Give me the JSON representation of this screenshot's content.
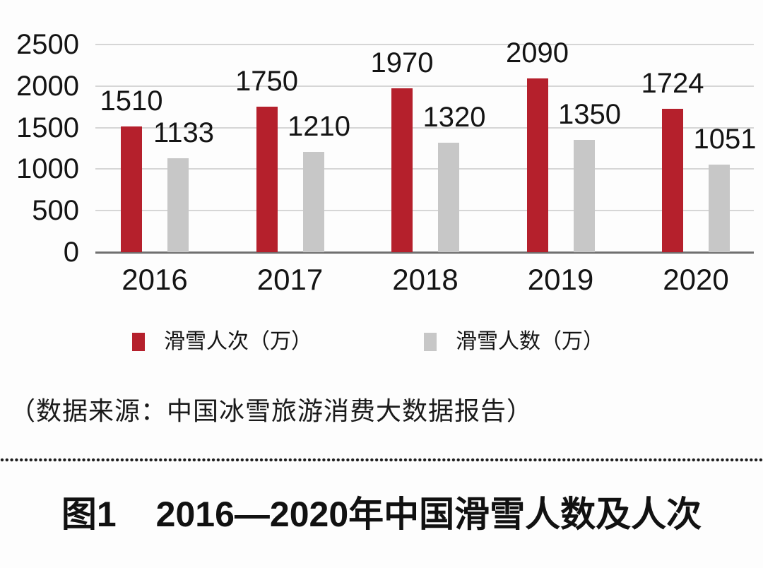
{
  "chart_data": {
    "type": "bar",
    "categories": [
      "2016",
      "2017",
      "2018",
      "2019",
      "2020"
    ],
    "series": [
      {
        "name": "滑雪人次（万）",
        "color": "#B5202C",
        "values": [
          1510,
          1750,
          1970,
          2090,
          1724
        ]
      },
      {
        "name": "滑雪人数（万）",
        "color": "#C7C7C7",
        "values": [
          1133,
          1210,
          1320,
          1350,
          1051
        ]
      }
    ],
    "title": "",
    "xlabel": "",
    "ylabel": "",
    "ylim": [
      0,
      2500
    ],
    "yticks": [
      0,
      500,
      1000,
      1500,
      2000,
      2500
    ],
    "grid": true,
    "legend_position": "bottom",
    "bar_value_labels": true
  },
  "colors": {
    "bar_red": "#B5202C",
    "bar_gray": "#C7C7C7",
    "gridline": "#d6d6d6",
    "axis_line": "#707070",
    "text": "#141414"
  },
  "source_note": "（数据来源：中国冰雪旅游消费大数据报告）",
  "caption": {
    "label": "图1",
    "text": "2016—2020年中国滑雪人数及人次"
  }
}
